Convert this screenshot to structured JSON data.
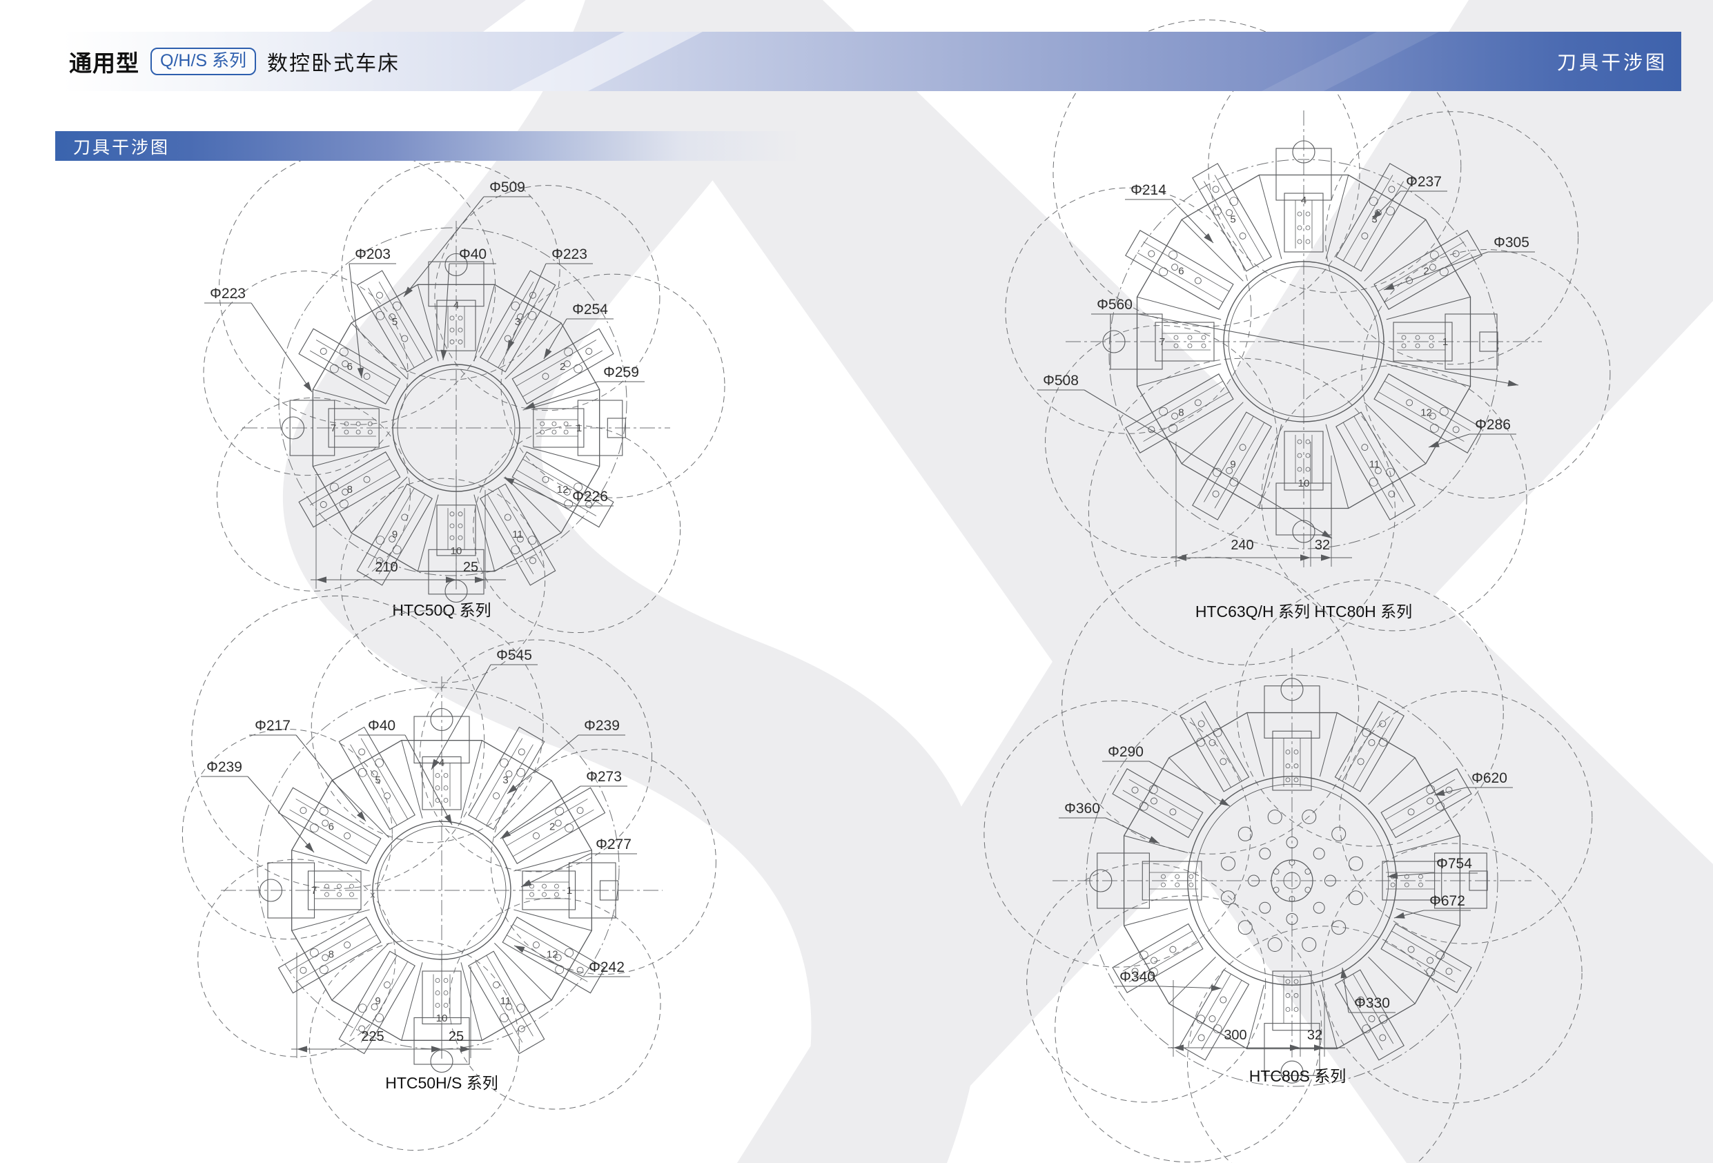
{
  "header": {
    "title_bold": "通用型",
    "series_badge": "Q/H/S 系列",
    "title_rest": "数控卧式车床",
    "right_label": "刀具干涉图"
  },
  "section_bar": {
    "label": "刀具干涉图"
  },
  "colors": {
    "accent_blue": "#3e62ac",
    "badge_blue": "#2e5fae",
    "bar_blue": "#3a64ae",
    "watermark_gray": "#ededef",
    "line_color": "#595b5e"
  },
  "diagrams": [
    {
      "id": "htc50q",
      "caption": "HTC50Q 系列",
      "labels": [
        "Φ509",
        "Φ203",
        "Φ40",
        "Φ223",
        "Φ223",
        "Φ254",
        "Φ259",
        "Φ226"
      ],
      "dims": [
        "210",
        "25"
      ],
      "station_numbers": [
        "1",
        "2",
        "3",
        "4",
        "5",
        "6",
        "7",
        "8",
        "9",
        "10",
        "11",
        "12"
      ]
    },
    {
      "id": "htc63qh-htc80h",
      "caption": "HTC63Q/H 系列  HTC80H 系列",
      "labels": [
        "Φ214",
        "Φ237",
        "Φ305",
        "Φ560",
        "Φ508",
        "Φ286"
      ],
      "dims": [
        "240",
        "32"
      ],
      "station_numbers": [
        "1",
        "2",
        "3",
        "4",
        "5",
        "6",
        "7",
        "8",
        "9",
        "10",
        "11",
        "12"
      ]
    },
    {
      "id": "htc50hs",
      "caption": "HTC50H/S 系列",
      "labels": [
        "Φ545",
        "Φ217",
        "Φ40",
        "Φ239",
        "Φ239",
        "Φ273",
        "Φ277",
        "Φ242"
      ],
      "dims": [
        "225",
        "25"
      ],
      "station_numbers": [
        "1",
        "2",
        "3",
        "4",
        "5",
        "6",
        "7",
        "8",
        "9",
        "10",
        "11",
        "12"
      ]
    },
    {
      "id": "htc80s",
      "caption": "HTC80S 系列",
      "labels": [
        "Φ290",
        "Φ620",
        "Φ360",
        "Φ754",
        "Φ672",
        "Φ340",
        "Φ330"
      ],
      "dims": [
        "300",
        "32"
      ],
      "station_numbers": []
    }
  ]
}
